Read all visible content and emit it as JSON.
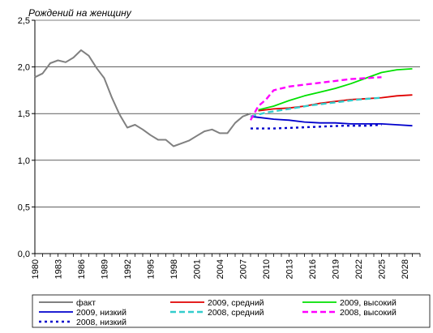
{
  "chart_data": {
    "type": "line",
    "title": "",
    "ylabel": "Рождений на женщину",
    "xlabel": "",
    "ylim": [
      0,
      2.5
    ],
    "xlim": [
      1980,
      2030
    ],
    "y_ticks": [
      {
        "value": 0,
        "label": "0,0"
      },
      {
        "value": 0.5,
        "label": "0,5"
      },
      {
        "value": 1.0,
        "label": "1,0"
      },
      {
        "value": 1.5,
        "label": "1,5"
      },
      {
        "value": 2.0,
        "label": "2,0"
      },
      {
        "value": 2.5,
        "label": "2,5"
      }
    ],
    "x_ticks": [
      1980,
      1983,
      1986,
      1989,
      1992,
      1995,
      1998,
      2001,
      2004,
      2007,
      2010,
      2013,
      2016,
      2019,
      2022,
      2025,
      2028
    ],
    "grid": "horizontal",
    "legend_position": "bottom",
    "series": [
      {
        "name": "факт",
        "color": "#808080",
        "style": "solid",
        "x": [
          1980,
          1981,
          1982,
          1983,
          1984,
          1985,
          1986,
          1987,
          1988,
          1989,
          1990,
          1991,
          1992,
          1993,
          1994,
          1995,
          1996,
          1997,
          1998,
          1999,
          2000,
          2001,
          2002,
          2003,
          2004,
          2005,
          2006,
          2007,
          2008
        ],
        "y": [
          1.89,
          1.93,
          2.04,
          2.07,
          2.05,
          2.1,
          2.18,
          2.12,
          1.99,
          1.88,
          1.67,
          1.49,
          1.35,
          1.38,
          1.33,
          1.27,
          1.22,
          1.22,
          1.15,
          1.18,
          1.21,
          1.26,
          1.31,
          1.33,
          1.29,
          1.29,
          1.4,
          1.47,
          1.5
        ]
      },
      {
        "name": "2009, средний",
        "color": "#e00000",
        "style": "solid",
        "x": [
          2009,
          2011,
          2013,
          2015,
          2017,
          2019,
          2021,
          2023,
          2025,
          2027,
          2029
        ],
        "y": [
          1.53,
          1.55,
          1.56,
          1.58,
          1.61,
          1.63,
          1.65,
          1.66,
          1.67,
          1.69,
          1.7
        ]
      },
      {
        "name": "2009, высокий",
        "color": "#00e000",
        "style": "solid",
        "x": [
          2009,
          2011,
          2013,
          2015,
          2017,
          2019,
          2021,
          2023,
          2025,
          2027,
          2029
        ],
        "y": [
          1.54,
          1.58,
          1.64,
          1.69,
          1.73,
          1.77,
          1.82,
          1.88,
          1.94,
          1.97,
          1.98
        ]
      },
      {
        "name": "2009, низкий",
        "color": "#0000cc",
        "style": "solid",
        "x": [
          2008,
          2009,
          2011,
          2013,
          2015,
          2017,
          2019,
          2021,
          2023,
          2025,
          2027,
          2029
        ],
        "y": [
          1.47,
          1.46,
          1.44,
          1.43,
          1.41,
          1.4,
          1.4,
          1.39,
          1.39,
          1.39,
          1.38,
          1.37
        ]
      },
      {
        "name": "2008, средний",
        "color": "#33cccc",
        "style": "dashed",
        "x": [
          2008,
          2010,
          2013,
          2016,
          2019,
          2022,
          2025
        ],
        "y": [
          1.47,
          1.51,
          1.55,
          1.59,
          1.62,
          1.65,
          1.67
        ]
      },
      {
        "name": "2008, высокий",
        "color": "#ff00ff",
        "style": "dashed",
        "x": [
          2008,
          2009,
          2010,
          2011,
          2013,
          2015,
          2017,
          2019,
          2021,
          2023,
          2025
        ],
        "y": [
          1.43,
          1.58,
          1.65,
          1.75,
          1.79,
          1.81,
          1.83,
          1.85,
          1.87,
          1.88,
          1.89
        ]
      },
      {
        "name": "2008, низкий",
        "color": "#0000cc",
        "style": "dotted",
        "x": [
          2008,
          2011,
          2014,
          2017,
          2020,
          2023,
          2025
        ],
        "y": [
          1.34,
          1.34,
          1.35,
          1.36,
          1.37,
          1.37,
          1.38
        ]
      }
    ]
  }
}
